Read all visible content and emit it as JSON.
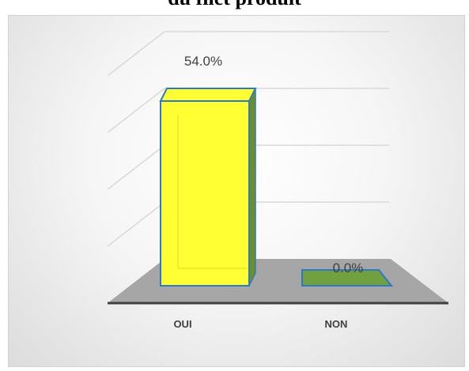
{
  "title": "du filet produit",
  "chart_data": {
    "type": "bar",
    "categories": [
      "OUI",
      "NON"
    ],
    "values": [
      54.0,
      0.0
    ],
    "data_labels": [
      "54.0%",
      "0.0%"
    ],
    "ylim": [
      0,
      60
    ],
    "unit": "%",
    "grid": true,
    "style": "3d",
    "colors": {
      "OUI": "#ffff33",
      "NON": "#70a040",
      "border": "#2f78c4",
      "floor": "#a6a6a6",
      "axis": "#404040",
      "grid": "#d9d9d9"
    }
  }
}
